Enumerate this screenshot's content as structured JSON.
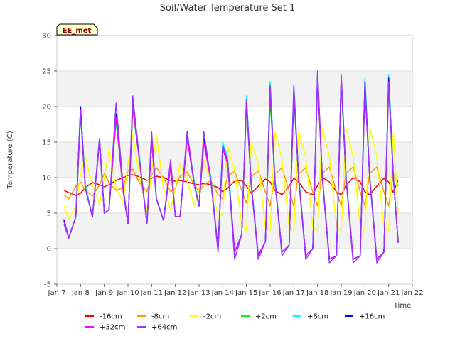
{
  "chart_data": {
    "type": "line",
    "title": "Soil/Water Temperature Set 1",
    "xlabel": "Time",
    "ylabel": "Temperature (C)",
    "ylim": [
      -5,
      30
    ],
    "xlim": [
      "Jan 7",
      "Jan 22"
    ],
    "x_ticks": [
      "Jan 7",
      "Jan 8",
      "Jan 9",
      "Jan 10",
      "Jan 11",
      "Jan 12",
      "Jan 13",
      "Jan 14",
      "Jan 15",
      "Jan 16",
      "Jan 17",
      "Jan 18",
      "Jan 19",
      "Jan 20",
      "Jan 21",
      "Jan 22"
    ],
    "y_ticks": [
      -5,
      0,
      5,
      10,
      15,
      20,
      25,
      30
    ],
    "grid": true,
    "legend_position": "bottom",
    "station_label": "EE_met",
    "x": [
      "Jan 7.3",
      "Jan 7.5",
      "Jan 7.8",
      "Jan 8.0",
      "Jan 8.2",
      "Jan 8.5",
      "Jan 8.8",
      "Jan 9.0",
      "Jan 9.2",
      "Jan 9.5",
      "Jan 9.8",
      "Jan 10.0",
      "Jan 10.2",
      "Jan 10.5",
      "Jan 10.8",
      "Jan 11.0",
      "Jan 11.2",
      "Jan 11.5",
      "Jan 11.8",
      "Jan 12.0",
      "Jan 12.2",
      "Jan 12.5",
      "Jan 12.8",
      "Jan 13.0",
      "Jan 13.2",
      "Jan 13.5",
      "Jan 13.8",
      "Jan 14.0",
      "Jan 14.2",
      "Jan 14.5",
      "Jan 14.8",
      "Jan 15.0",
      "Jan 15.2",
      "Jan 15.5",
      "Jan 15.8",
      "Jan 16.0",
      "Jan 16.2",
      "Jan 16.5",
      "Jan 16.8",
      "Jan 17.0",
      "Jan 17.2",
      "Jan 17.5",
      "Jan 17.8",
      "Jan 18.0",
      "Jan 18.2",
      "Jan 18.5",
      "Jan 18.8",
      "Jan 19.0",
      "Jan 19.2",
      "Jan 19.5",
      "Jan 19.8",
      "Jan 20.0",
      "Jan 20.2",
      "Jan 20.5",
      "Jan 20.8",
      "Jan 21.0",
      "Jan 21.2",
      "Jan 21.4"
    ],
    "series": [
      {
        "name": "-16cm",
        "color": "#ff0000",
        "values": [
          8.2,
          7.9,
          7.5,
          7.8,
          8.6,
          9.3,
          9.0,
          8.7,
          9.0,
          9.6,
          10.0,
          10.3,
          10.4,
          10.1,
          9.6,
          9.9,
          10.2,
          10.0,
          9.6,
          9.5,
          9.6,
          9.4,
          9.1,
          9.0,
          9.2,
          9.0,
          8.6,
          8.0,
          8.5,
          9.5,
          9.6,
          8.8,
          7.8,
          8.8,
          9.8,
          9.4,
          8.2,
          7.6,
          8.8,
          9.9,
          9.4,
          8.0,
          7.6,
          8.9,
          10.0,
          9.4,
          8.0,
          7.6,
          8.9,
          10.0,
          9.4,
          8.0,
          7.6,
          8.8,
          9.9,
          9.4,
          7.9,
          9.7
        ]
      },
      {
        "name": "-8cm",
        "color": "#ff9900",
        "values": [
          7.6,
          7.0,
          8.8,
          9.4,
          8.2,
          7.4,
          9.0,
          10.6,
          9.3,
          8.2,
          8.6,
          11.0,
          11.2,
          9.2,
          8.0,
          10.4,
          11.4,
          10.0,
          8.0,
          8.6,
          10.2,
          10.8,
          9.0,
          8.0,
          9.0,
          9.6,
          7.6,
          7.0,
          10.2,
          10.9,
          8.2,
          6.4,
          10.1,
          11.0,
          8.0,
          6.0,
          10.5,
          11.4,
          8.1,
          6.0,
          10.5,
          11.4,
          8.0,
          6.0,
          10.6,
          11.5,
          8.0,
          6.0,
          10.6,
          11.5,
          8.0,
          6.0,
          10.6,
          11.5,
          8.0,
          6.0,
          10.6,
          8.8
        ]
      },
      {
        "name": "-2cm",
        "color": "#ffff00",
        "values": [
          6.0,
          4.2,
          6.0,
          10.5,
          13.0,
          9.0,
          6.2,
          10.0,
          14.0,
          8.5,
          6.5,
          12.0,
          16.0,
          10.0,
          5.2,
          11.0,
          16.0,
          8.5,
          5.5,
          8.5,
          12.0,
          9.5,
          6.0,
          8.5,
          12.5,
          9.5,
          4.5,
          5.0,
          14.5,
          11.0,
          3.5,
          2.5,
          15.0,
          12.0,
          3.0,
          2.5,
          16.5,
          12.5,
          3.0,
          2.5,
          16.5,
          13.0,
          3.0,
          2.5,
          17.0,
          13.0,
          3.0,
          2.5,
          17.0,
          13.0,
          3.0,
          2.5,
          17.0,
          13.0,
          3.0,
          2.5,
          16.5,
          5.0
        ]
      },
      {
        "name": "+2cm",
        "color": "#00ff00",
        "values": [
          4.0,
          1.5,
          4.5,
          19.0,
          8.5,
          4.5,
          15.0,
          5.0,
          5.5,
          18.0,
          8.0,
          3.5,
          19.5,
          12.0,
          3.5,
          15.0,
          7.0,
          4.0,
          11.5,
          4.5,
          4.5,
          15.5,
          9.0,
          6.0,
          15.0,
          9.5,
          0.0,
          14.0,
          12.5,
          -0.5,
          2.0,
          20.0,
          9.0,
          -1.0,
          1.0,
          21.0,
          9.5,
          -0.5,
          0.5,
          21.5,
          10.0,
          -1.0,
          0.0,
          23.5,
          10.0,
          -1.5,
          -1.0,
          23.0,
          10.0,
          -1.5,
          -1.0,
          22.5,
          10.0,
          -1.5,
          -0.5,
          22.5,
          10.0,
          1.0
        ]
      },
      {
        "name": "+8cm",
        "color": "#00ffff",
        "values": [
          4.2,
          1.5,
          4.5,
          20.0,
          9.0,
          4.5,
          15.5,
          5.0,
          5.5,
          19.0,
          8.5,
          3.5,
          21.0,
          12.5,
          3.5,
          15.5,
          7.0,
          4.0,
          12.0,
          4.5,
          4.5,
          16.0,
          9.5,
          6.0,
          15.5,
          10.0,
          0.0,
          15.0,
          13.0,
          -0.5,
          2.0,
          21.5,
          9.5,
          -1.0,
          1.0,
          23.5,
          10.0,
          -0.5,
          0.5,
          23.0,
          10.5,
          -1.0,
          0.0,
          24.5,
          10.5,
          -1.5,
          -1.0,
          24.0,
          10.5,
          -1.5,
          -1.0,
          24.0,
          10.5,
          -1.5,
          -0.5,
          24.5,
          10.5,
          1.0
        ]
      },
      {
        "name": "+16cm",
        "color": "#0000ff",
        "values": [
          4.0,
          1.5,
          4.5,
          20.0,
          8.5,
          4.5,
          15.5,
          5.0,
          5.5,
          19.0,
          8.5,
          3.5,
          20.5,
          12.0,
          3.5,
          15.5,
          7.0,
          4.0,
          12.0,
          4.5,
          4.5,
          16.0,
          9.0,
          6.0,
          15.5,
          9.5,
          0.0,
          14.5,
          12.5,
          -0.5,
          2.0,
          21.0,
          9.0,
          -1.0,
          1.0,
          22.5,
          9.5,
          -0.5,
          0.5,
          22.0,
          10.0,
          -1.0,
          0.0,
          24.5,
          10.0,
          -1.5,
          -1.0,
          24.0,
          10.0,
          -1.5,
          -1.0,
          23.5,
          10.0,
          -1.5,
          -0.5,
          24.0,
          10.0,
          1.0
        ]
      },
      {
        "name": "+32cm",
        "color": "#ff00ff",
        "values": [
          3.8,
          1.5,
          4.5,
          19.5,
          8.5,
          4.5,
          15.0,
          5.0,
          5.5,
          18.5,
          8.0,
          3.5,
          20.0,
          12.0,
          3.5,
          15.0,
          7.0,
          4.0,
          11.5,
          4.5,
          4.5,
          15.5,
          9.0,
          6.0,
          15.0,
          9.5,
          0.0,
          14.0,
          12.0,
          -0.5,
          2.0,
          20.5,
          9.0,
          -1.0,
          1.0,
          22.0,
          9.5,
          -0.5,
          0.5,
          22.5,
          10.0,
          -1.0,
          0.0,
          24.0,
          10.0,
          -1.5,
          -1.0,
          24.0,
          10.0,
          -1.5,
          -1.0,
          22.5,
          10.0,
          -1.5,
          -0.5,
          23.0,
          10.0,
          1.0
        ]
      },
      {
        "name": "+64cm",
        "color": "#9933ff",
        "values": [
          3.5,
          1.5,
          4.5,
          19.0,
          8.5,
          4.5,
          15.5,
          5.0,
          5.5,
          20.5,
          8.5,
          3.5,
          21.5,
          12.0,
          3.5,
          16.5,
          7.0,
          4.0,
          12.5,
          4.5,
          4.5,
          16.5,
          9.0,
          6.0,
          16.5,
          9.5,
          -0.5,
          14.5,
          12.5,
          -1.5,
          2.0,
          21.0,
          9.0,
          -1.5,
          1.0,
          23.0,
          9.5,
          -1.0,
          0.5,
          23.0,
          10.0,
          -1.5,
          0.0,
          25.0,
          10.0,
          -2.0,
          -1.0,
          24.5,
          10.0,
          -2.0,
          -1.0,
          23.0,
          10.0,
          -2.0,
          -0.5,
          23.5,
          10.0,
          0.8
        ]
      }
    ]
  }
}
